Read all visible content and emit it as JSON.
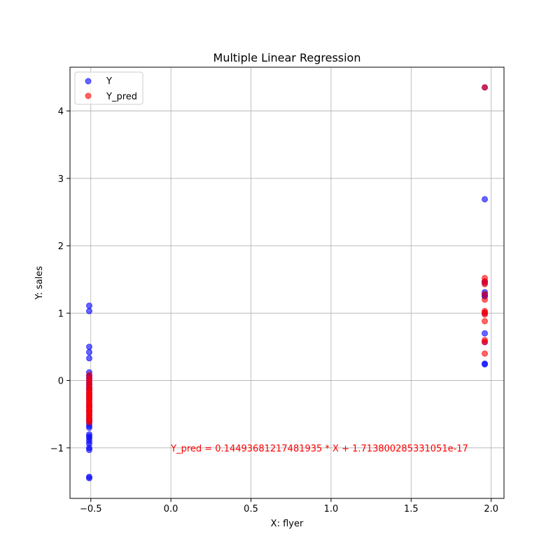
{
  "chart_data": {
    "type": "scatter",
    "title": "Multiple Linear Regression",
    "xlabel": "X: flyer",
    "ylabel": "Y: sales",
    "xlim": [
      -0.63,
      2.08
    ],
    "ylim": [
      -1.75,
      4.65
    ],
    "grid": true,
    "legend_position": "top-left",
    "x_ticks": [
      -0.5,
      0.0,
      0.5,
      1.0,
      1.5,
      2.0
    ],
    "x_tick_labels": [
      "−0.5",
      "0.0",
      "0.5",
      "1.0",
      "1.5",
      "2.0"
    ],
    "y_ticks": [
      -1,
      0,
      1,
      2,
      3,
      4
    ],
    "y_tick_labels": [
      "−1",
      "0",
      "1",
      "2",
      "3",
      "4"
    ],
    "annotation": {
      "text": "Y_pred = 0.14493681217481935 * X + 1.713800285331051e-17",
      "x": 0.0,
      "y": -1.0,
      "color": "#ff0000"
    },
    "series": [
      {
        "name": "Y",
        "color": "#0000ff",
        "x": [
          -0.51,
          -0.51,
          -0.51,
          -0.51,
          -0.51,
          -0.51,
          -0.51,
          -0.51,
          -0.51,
          -0.51,
          -0.51,
          -0.51,
          -0.51,
          -0.51,
          -0.51,
          -0.51,
          -0.51,
          -0.51,
          -0.51,
          -0.51,
          -0.51,
          -0.51,
          -0.51,
          -0.51,
          -0.51,
          -0.51,
          -0.51,
          -0.51,
          -0.51,
          -0.51,
          -0.51,
          -0.51,
          -0.51,
          -0.51,
          -0.51,
          -0.51,
          -0.51,
          -0.51,
          -0.51,
          -0.51,
          -0.51,
          -0.51,
          1.96,
          1.96,
          1.96,
          1.96,
          1.96,
          1.96,
          1.96,
          1.96,
          1.96,
          1.96,
          1.96,
          1.96,
          1.96
        ],
        "y": [
          1.11,
          1.03,
          0.5,
          0.42,
          0.33,
          0.12,
          0.07,
          0.02,
          -0.02,
          -0.06,
          -0.1,
          -0.14,
          -0.18,
          -0.22,
          -0.27,
          -0.31,
          -0.35,
          -0.4,
          -0.44,
          -0.48,
          -0.52,
          -0.56,
          -0.6,
          -0.63,
          -0.67,
          -0.7,
          -0.8,
          -0.83,
          -0.86,
          -0.9,
          -0.94,
          -1.0,
          -1.03,
          -1.43,
          -1.45,
          -0.12,
          -0.25,
          -0.38,
          -0.46,
          -0.58,
          0.05,
          -0.05,
          4.35,
          2.69,
          1.47,
          1.45,
          1.31,
          1.28,
          1.26,
          1.25,
          0.7,
          0.57,
          0.25,
          0.24,
          1.0
        ]
      },
      {
        "name": "Y_pred",
        "color": "#ff0000",
        "x": [
          -0.51,
          -0.51,
          -0.51,
          -0.51,
          -0.51,
          -0.51,
          -0.51,
          -0.51,
          -0.51,
          -0.51,
          -0.51,
          -0.51,
          -0.51,
          -0.51,
          -0.51,
          -0.51,
          -0.51,
          -0.51,
          -0.51,
          -0.51,
          -0.51,
          -0.51,
          -0.51,
          -0.51,
          -0.51,
          -0.51,
          -0.51,
          -0.51,
          1.96,
          1.96,
          1.96,
          1.96,
          1.96,
          1.96,
          1.96,
          1.96,
          1.96,
          1.96,
          1.96,
          1.96,
          1.96
        ],
        "y": [
          0.08,
          0.03,
          -0.01,
          -0.05,
          -0.09,
          -0.12,
          -0.15,
          -0.18,
          -0.21,
          -0.24,
          -0.27,
          -0.3,
          -0.33,
          -0.36,
          -0.39,
          -0.42,
          -0.44,
          -0.47,
          -0.5,
          -0.52,
          -0.55,
          -0.57,
          -0.6,
          -0.62,
          -0.38,
          -0.45,
          -0.2,
          -0.28,
          4.35,
          1.52,
          1.47,
          1.43,
          1.28,
          1.2,
          1.03,
          1.01,
          0.98,
          0.88,
          0.6,
          0.57,
          0.4
        ]
      }
    ]
  }
}
